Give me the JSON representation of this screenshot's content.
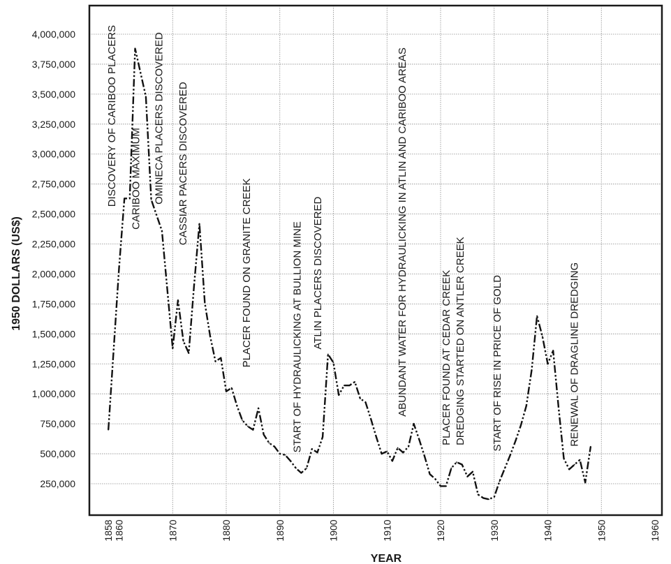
{
  "chart_data": {
    "type": "line",
    "title": "",
    "xlabel": "YEAR",
    "ylabel": "1950 DOLLARS (US$)",
    "xlim": [
      1853,
      1960
    ],
    "ylim": [
      0,
      4250000
    ],
    "grid": true,
    "x_ticks": [
      {
        "value": 1858,
        "label": "1858"
      },
      {
        "value": 1860,
        "label": "1860"
      },
      {
        "value": 1870,
        "label": "1870"
      },
      {
        "value": 1880,
        "label": "1880"
      },
      {
        "value": 1890,
        "label": "1890"
      },
      {
        "value": 1900,
        "label": "1900"
      },
      {
        "value": 1910,
        "label": "1910"
      },
      {
        "value": 1920,
        "label": "1920"
      },
      {
        "value": 1930,
        "label": "1930"
      },
      {
        "value": 1940,
        "label": "1940"
      },
      {
        "value": 1950,
        "label": "1950"
      },
      {
        "value": 1960,
        "label": "1960"
      }
    ],
    "y_ticks": [
      {
        "value": 250000,
        "label": "250,000"
      },
      {
        "value": 500000,
        "label": "500,000"
      },
      {
        "value": 750000,
        "label": "750,000"
      },
      {
        "value": 1000000,
        "label": "1,000,000"
      },
      {
        "value": 1250000,
        "label": "1,250,000"
      },
      {
        "value": 1500000,
        "label": "1,500,000"
      },
      {
        "value": 1750000,
        "label": "1,750,000"
      },
      {
        "value": 2000000,
        "label": "2,000,000"
      },
      {
        "value": 2250000,
        "label": "2,250,000"
      },
      {
        "value": 2500000,
        "label": "2,500,000"
      },
      {
        "value": 2750000,
        "label": "2,750,000"
      },
      {
        "value": 3000000,
        "label": "3,000,000"
      },
      {
        "value": 3250000,
        "label": "3,250,000"
      },
      {
        "value": 3500000,
        "label": "3,500,000"
      },
      {
        "value": 3750000,
        "label": "3,750,000"
      },
      {
        "value": 4000000,
        "label": "4,000,000"
      }
    ],
    "series": [
      {
        "values": [
          {
            "x": 1858,
            "y": 700000
          },
          {
            "x": 1860,
            "y": 2050000
          },
          {
            "x": 1861,
            "y": 2630000
          },
          {
            "x": 1862,
            "y": 2630000
          },
          {
            "x": 1863,
            "y": 3880000
          },
          {
            "x": 1865,
            "y": 3480000
          },
          {
            "x": 1866,
            "y": 2620000
          },
          {
            "x": 1868,
            "y": 2360000
          },
          {
            "x": 1870,
            "y": 1380000
          },
          {
            "x": 1871,
            "y": 1780000
          },
          {
            "x": 1872,
            "y": 1440000
          },
          {
            "x": 1873,
            "y": 1340000
          },
          {
            "x": 1874,
            "y": 1900000
          },
          {
            "x": 1875,
            "y": 2420000
          },
          {
            "x": 1876,
            "y": 1760000
          },
          {
            "x": 1877,
            "y": 1480000
          },
          {
            "x": 1878,
            "y": 1270000
          },
          {
            "x": 1879,
            "y": 1300000
          },
          {
            "x": 1880,
            "y": 1020000
          },
          {
            "x": 1881,
            "y": 1050000
          },
          {
            "x": 1882,
            "y": 900000
          },
          {
            "x": 1883,
            "y": 780000
          },
          {
            "x": 1884,
            "y": 730000
          },
          {
            "x": 1885,
            "y": 700000
          },
          {
            "x": 1886,
            "y": 880000
          },
          {
            "x": 1887,
            "y": 660000
          },
          {
            "x": 1888,
            "y": 590000
          },
          {
            "x": 1889,
            "y": 560000
          },
          {
            "x": 1890,
            "y": 500000
          },
          {
            "x": 1891,
            "y": 490000
          },
          {
            "x": 1892,
            "y": 440000
          },
          {
            "x": 1893,
            "y": 380000
          },
          {
            "x": 1894,
            "y": 340000
          },
          {
            "x": 1895,
            "y": 380000
          },
          {
            "x": 1896,
            "y": 540000
          },
          {
            "x": 1897,
            "y": 510000
          },
          {
            "x": 1898,
            "y": 640000
          },
          {
            "x": 1899,
            "y": 1330000
          },
          {
            "x": 1900,
            "y": 1260000
          },
          {
            "x": 1901,
            "y": 990000
          },
          {
            "x": 1902,
            "y": 1070000
          },
          {
            "x": 1903,
            "y": 1070000
          },
          {
            "x": 1904,
            "y": 1100000
          },
          {
            "x": 1905,
            "y": 960000
          },
          {
            "x": 1906,
            "y": 930000
          },
          {
            "x": 1907,
            "y": 790000
          },
          {
            "x": 1908,
            "y": 640000
          },
          {
            "x": 1909,
            "y": 500000
          },
          {
            "x": 1910,
            "y": 520000
          },
          {
            "x": 1911,
            "y": 440000
          },
          {
            "x": 1912,
            "y": 550000
          },
          {
            "x": 1913,
            "y": 510000
          },
          {
            "x": 1914,
            "y": 560000
          },
          {
            "x": 1915,
            "y": 750000
          },
          {
            "x": 1916,
            "y": 620000
          },
          {
            "x": 1917,
            "y": 480000
          },
          {
            "x": 1918,
            "y": 330000
          },
          {
            "x": 1919,
            "y": 290000
          },
          {
            "x": 1920,
            "y": 230000
          },
          {
            "x": 1921,
            "y": 230000
          },
          {
            "x": 1922,
            "y": 380000
          },
          {
            "x": 1923,
            "y": 430000
          },
          {
            "x": 1924,
            "y": 410000
          },
          {
            "x": 1925,
            "y": 310000
          },
          {
            "x": 1926,
            "y": 350000
          },
          {
            "x": 1927,
            "y": 160000
          },
          {
            "x": 1928,
            "y": 130000
          },
          {
            "x": 1929,
            "y": 120000
          },
          {
            "x": 1930,
            "y": 140000
          },
          {
            "x": 1931,
            "y": 270000
          },
          {
            "x": 1932,
            "y": 380000
          },
          {
            "x": 1933,
            "y": 490000
          },
          {
            "x": 1934,
            "y": 610000
          },
          {
            "x": 1935,
            "y": 740000
          },
          {
            "x": 1936,
            "y": 900000
          },
          {
            "x": 1937,
            "y": 1200000
          },
          {
            "x": 1938,
            "y": 1650000
          },
          {
            "x": 1939,
            "y": 1480000
          },
          {
            "x": 1940,
            "y": 1250000
          },
          {
            "x": 1941,
            "y": 1360000
          },
          {
            "x": 1942,
            "y": 890000
          },
          {
            "x": 1943,
            "y": 460000
          },
          {
            "x": 1944,
            "y": 370000
          },
          {
            "x": 1945,
            "y": 410000
          },
          {
            "x": 1946,
            "y": 450000
          },
          {
            "x": 1947,
            "y": 260000
          },
          {
            "x": 1948,
            "y": 560000
          }
        ]
      }
    ],
    "annotations": [
      {
        "text": "DISCOVERY OF CARIBOO PLACERS",
        "x": 1859.3,
        "anchor_y": 2560000
      },
      {
        "text": "CARIBOO MAXIMUM",
        "x": 1863.8,
        "anchor_y": 2370000
      },
      {
        "text": "OMINECA PLACERS DISCOVERED",
        "x": 1868.1,
        "anchor_y": 2580000
      },
      {
        "text": "CASSIAR PACERS DISCOVERED",
        "x": 1872.6,
        "anchor_y": 2240000
      },
      {
        "text": "PLACER FOUND ON GRANITE CREEK",
        "x": 1884.4,
        "anchor_y": 1220000
      },
      {
        "text": "START OF HYDRAULICKING AT BULLION MINE",
        "x": 1893.9,
        "anchor_y": 510000
      },
      {
        "text": "ATLIN PLACERS DISCOVERED",
        "x": 1897.7,
        "anchor_y": 1370000
      },
      {
        "text": "ABUNDANT WATER FOR HYDRAULICKING IN ATLIN AND CARIBOO AREAS",
        "x": 1913.5,
        "anchor_y": 810000
      },
      {
        "text": "PLACER FOUND AT CEDAR CREEK",
        "x": 1921.7,
        "anchor_y": 570000
      },
      {
        "text": "DREDGING STARTED ON ANTLER CREEK",
        "x": 1924.3,
        "anchor_y": 570000
      },
      {
        "text": "START OF RISE IN PRICE OF GOLD",
        "x": 1931.2,
        "anchor_y": 520000
      },
      {
        "text": "RENEWAL OF DRAGLINE DREDGING",
        "x": 1945.6,
        "anchor_y": 560000
      }
    ]
  }
}
